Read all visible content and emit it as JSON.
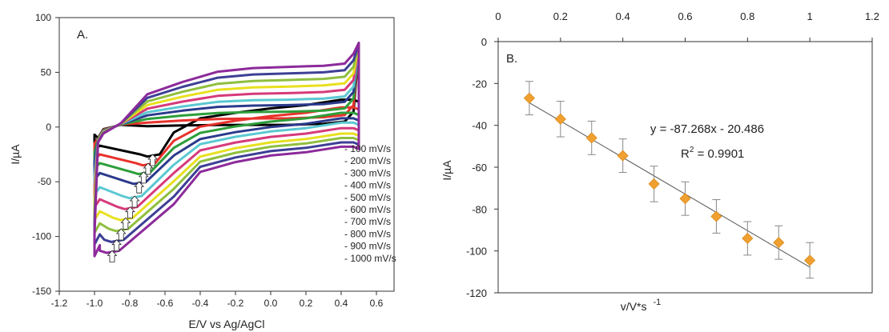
{
  "chart_data": [
    {
      "type": "line",
      "panel_label": "A.",
      "xlabel": "E/V vs Ag/AgCl",
      "ylabel": "I/µA",
      "xlim": [
        -1.2,
        0.7
      ],
      "ylim": [
        -150,
        100
      ],
      "x_ticks": [
        -1.2,
        -1.0,
        -0.8,
        -0.6,
        -0.4,
        -0.2,
        0.0,
        0.2,
        0.4,
        0.6
      ],
      "x_tick_labels": [
        "-1.2",
        "-1.0",
        "-0.8",
        "-0.6",
        "-0.4",
        "-0.2",
        "0.0",
        "0.2",
        "0.4",
        "0.6"
      ],
      "y_ticks": [
        100,
        50,
        0,
        -50,
        -100,
        -150
      ],
      "y_tick_labels": [
        "100",
        "50",
        "0",
        "-50",
        "-100",
        "-150"
      ],
      "grid": false,
      "legend_position": "right",
      "series": [
        {
          "name": "100 mV/s",
          "color": "#000000",
          "upper": 2,
          "lower_right": 17,
          "lower_left": -17,
          "peak": -27
        },
        {
          "name": "200 mV/s",
          "color": "#e8322b",
          "upper": 8,
          "lower_right": 10,
          "lower_left": -25,
          "peak": -35
        },
        {
          "name": "300 mV/s",
          "color": "#2e9e3a",
          "upper": 14,
          "lower_right": 5,
          "lower_left": -33,
          "peak": -43
        },
        {
          "name": "400 mV/s",
          "color": "#2b3a8c",
          "upper": 20,
          "lower_right": 0,
          "lower_left": -42,
          "peak": -52
        },
        {
          "name": "500 mV/s",
          "color": "#5bc8d2",
          "upper": 25,
          "lower_right": -4,
          "lower_left": -55,
          "peak": -65
        },
        {
          "name": "600 mV/s",
          "color": "#d63a7a",
          "upper": 31,
          "lower_right": -9,
          "lower_left": -66,
          "peak": -75
        },
        {
          "name": "700 mV/s",
          "color": "#e8e01f",
          "upper": 37,
          "lower_right": -14,
          "lower_left": -77,
          "peak": -85
        },
        {
          "name": "800 mV/s",
          "color": "#8fbf3f",
          "upper": 43,
          "lower_right": -18,
          "lower_left": -88,
          "peak": -95
        },
        {
          "name": "900 mV/s",
          "color": "#3d3f95",
          "upper": 49,
          "lower_right": -22,
          "lower_left": -98,
          "peak": -105
        },
        {
          "name": "1000 mV/s",
          "color": "#8c2a9a",
          "upper": 55,
          "lower_right": -26,
          "lower_left": -108,
          "peak": -115
        }
      ]
    },
    {
      "type": "scatter",
      "panel_label": "B.",
      "xlabel": "v/V*s",
      "xlabel_superscript": "-1",
      "ylabel": "I/µA",
      "xlim": [
        0,
        1.2
      ],
      "ylim": [
        -120,
        0
      ],
      "x_axis_position": "top",
      "x_ticks": [
        0,
        0.2,
        0.4,
        0.6,
        0.8,
        1.0,
        1.2
      ],
      "x_tick_labels": [
        "0",
        "0.2",
        "0.4",
        "0.6",
        "0.8",
        "1",
        "1.2"
      ],
      "y_ticks": [
        0,
        -20,
        -40,
        -60,
        -80,
        -100,
        -120
      ],
      "y_tick_labels": [
        "0",
        "-20",
        "-40",
        "-60",
        "-80",
        "-100",
        "-120"
      ],
      "grid": false,
      "marker_color": "#f0a030",
      "x": [
        0.1,
        0.2,
        0.3,
        0.4,
        0.5,
        0.6,
        0.7,
        0.8,
        0.9,
        1.0
      ],
      "y": [
        -27,
        -37,
        -46,
        -54.5,
        -68,
        -75,
        -83.5,
        -94,
        -96,
        -104.5
      ],
      "error": [
        8,
        8.5,
        8,
        8,
        8.5,
        8,
        8,
        8,
        8,
        8.5
      ],
      "trendline": {
        "slope": -87.268,
        "intercept": -20.486,
        "x_range": [
          0.1,
          1.0
        ]
      },
      "equation_text": "y = -87.268x - 20.486",
      "r2_label": "R",
      "r2_superscript": "2",
      "r2_value_text": " = 0.9901"
    }
  ]
}
